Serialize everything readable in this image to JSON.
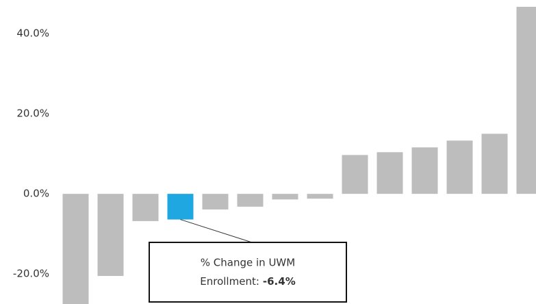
{
  "chart_data": {
    "type": "bar",
    "values": [
      -30,
      -20.5,
      -6.8,
      -6.4,
      -3.9,
      -3.2,
      -1.4,
      -1.2,
      9.7,
      10.4,
      11.6,
      13.3,
      15.0,
      46.7
    ],
    "value_labels": [
      null,
      null,
      null,
      "-6.4%",
      null,
      null,
      null,
      null,
      null,
      null,
      null,
      null,
      null,
      null
    ],
    "colors": [
      "#bdbdbd",
      "#bdbdbd",
      "#bdbdbd",
      "#1ea7e1",
      "#bdbdbd",
      "#bdbdbd",
      "#bdbdbd",
      "#bdbdbd",
      "#bdbdbd",
      "#bdbdbd",
      "#bdbdbd",
      "#bdbdbd",
      "#bdbdbd",
      "#bdbdbd"
    ],
    "ylim": [
      -27.5,
      48.4
    ],
    "yticks": [
      {
        "value": -20,
        "label": "-20.0%"
      },
      {
        "value": 0,
        "label": "0.0%"
      },
      {
        "value": 20,
        "label": "20.0%"
      },
      {
        "value": 40,
        "label": "40.0%"
      }
    ],
    "grid": false,
    "tooltip": [
      "% Change in UWM",
      "Enrollment:"
    ]
  }
}
